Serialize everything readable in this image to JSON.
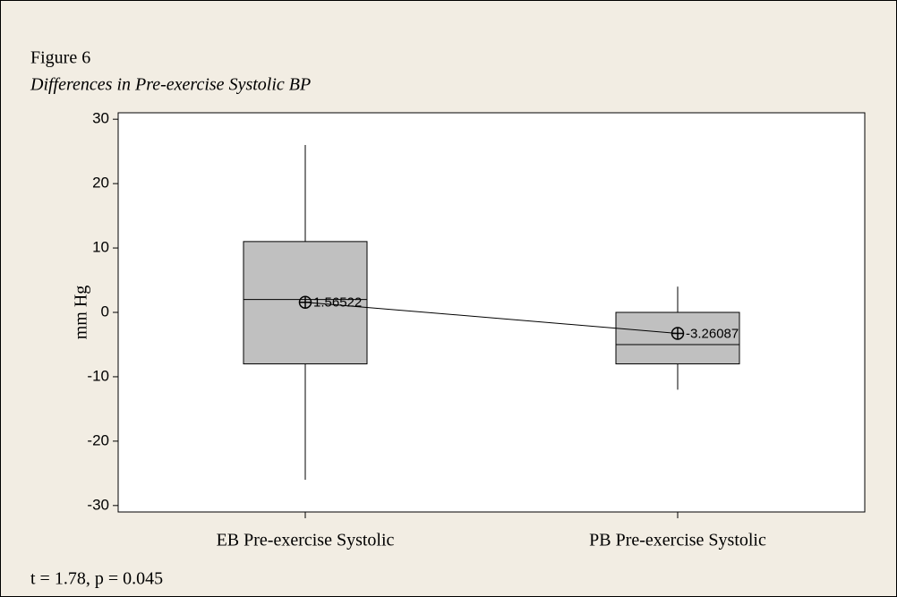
{
  "label": "Figure 6",
  "chart_data": {
    "type": "box",
    "title": "Differences in Pre-exercise Systolic BP",
    "y_label": "mm Hg",
    "categories": [
      "EB Pre-exercise Systolic",
      "PB Pre-exercise Systolic"
    ],
    "boxes": [
      {
        "whisker_high": 26,
        "q3": 11,
        "median": 2,
        "q1": -8,
        "whisker_low": -26,
        "mean": 1.56522
      },
      {
        "whisker_high": 4,
        "q3": 0,
        "median": -5,
        "q1": -8,
        "whisker_low": -12,
        "mean": -3.26087
      }
    ],
    "color": "#c0c0c0",
    "ylim": [
      -31,
      31
    ],
    "yticks": [
      -30,
      -20,
      -10,
      0,
      10,
      20,
      30
    ],
    "mean_connect": true
  },
  "note": "t = 1.78, p = 0.045"
}
